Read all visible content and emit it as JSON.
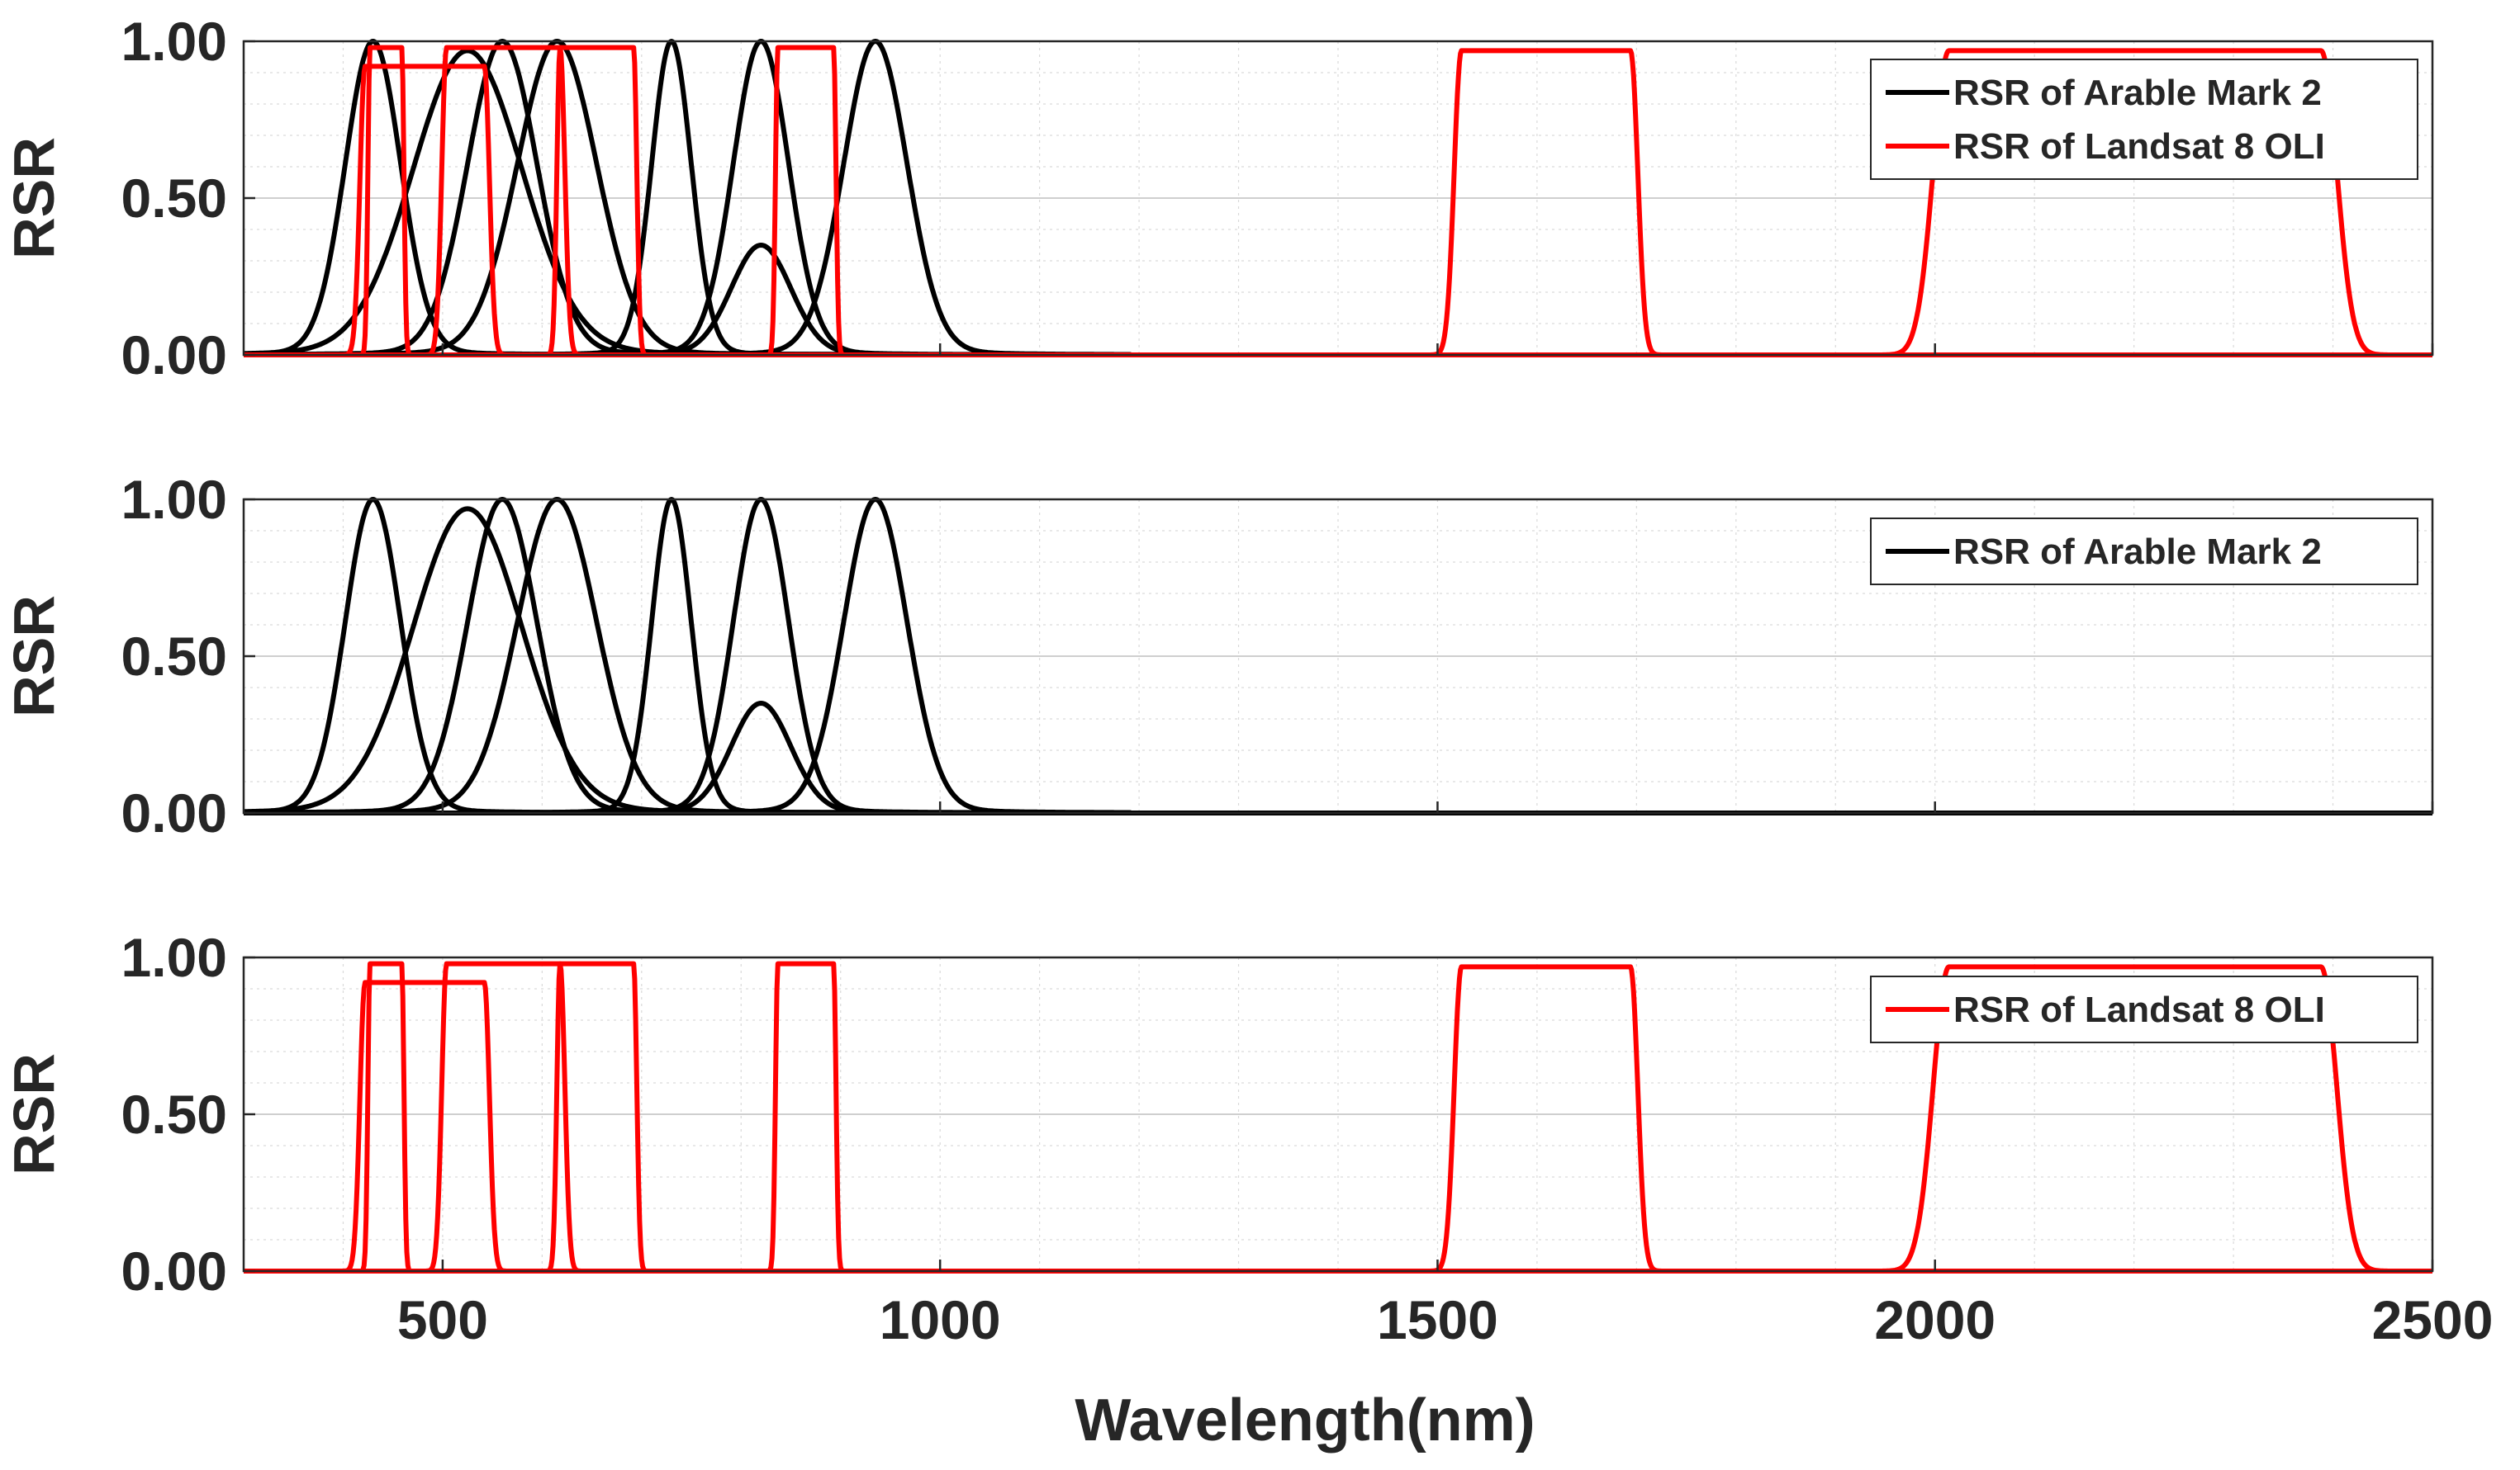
{
  "chart_data": [
    {
      "type": "line",
      "ylabel": "RSR",
      "xlabel": "",
      "xlim": [
        300,
        2500
      ],
      "ylim": [
        0,
        1
      ],
      "y_ticks": [
        "0.00",
        "0.50",
        "1.00"
      ],
      "x_ticks": [],
      "grid": "minor",
      "legend_position": "top-right",
      "legend": [
        "RSR of Arable Mark 2",
        "RSR of Landsat 8 OLI"
      ],
      "series": [
        {
          "name": "RSR of Arable Mark 2",
          "color": "#000000",
          "bands": [
            [
              430,
              28,
              1.0
            ],
            [
              525,
              55,
              0.97
            ],
            [
              560,
              35,
              1.0
            ],
            [
              615,
              40,
              1.0
            ],
            [
              730,
              20,
              1.0
            ],
            [
              820,
              28,
              1.0
            ],
            [
              935,
              32,
              1.0
            ],
            [
              820,
              30,
              0.35
            ]
          ]
        },
        {
          "name": "RSR of Landsat 8 OLI",
          "color": "#ff0000",
          "bands": [
            [
              443,
              16,
              0.98
            ],
            [
              482,
              60,
              0.92
            ],
            [
              561,
              57,
              0.98
            ],
            [
              655,
              37,
              0.98
            ],
            [
              865,
              28,
              0.98
            ],
            [
              1609,
              85,
              0.97
            ],
            [
              2201,
              187,
              0.97
            ]
          ]
        }
      ]
    },
    {
      "type": "line",
      "ylabel": "RSR",
      "xlabel": "",
      "xlim": [
        300,
        2500
      ],
      "ylim": [
        0,
        1
      ],
      "y_ticks": [
        "0.00",
        "0.50",
        "1.00"
      ],
      "x_ticks": [],
      "grid": "minor",
      "legend_position": "top-right",
      "legend": [
        "RSR of Arable Mark 2"
      ],
      "series": [
        {
          "name": "RSR of Arable Mark 2",
          "color": "#000000",
          "bands": [
            [
              430,
              28,
              1.0
            ],
            [
              525,
              55,
              0.97
            ],
            [
              560,
              35,
              1.0
            ],
            [
              615,
              40,
              1.0
            ],
            [
              730,
              20,
              1.0
            ],
            [
              820,
              28,
              1.0
            ],
            [
              935,
              32,
              1.0
            ],
            [
              820,
              30,
              0.35
            ]
          ]
        }
      ]
    },
    {
      "type": "line",
      "ylabel": "RSR",
      "xlabel": "Wavelength(nm)",
      "xlim": [
        300,
        2500
      ],
      "ylim": [
        0,
        1
      ],
      "y_ticks": [
        "0.00",
        "0.50",
        "1.00"
      ],
      "x_ticks": [
        "500",
        "1000",
        "1500",
        "2000",
        "2500"
      ],
      "grid": "minor",
      "legend_position": "top-right",
      "legend": [
        "RSR of Landsat 8 OLI"
      ],
      "series": [
        {
          "name": "RSR of Landsat 8 OLI",
          "color": "#ff0000",
          "bands": [
            [
              443,
              16,
              0.98
            ],
            [
              482,
              60,
              0.92
            ],
            [
              561,
              57,
              0.98
            ],
            [
              655,
              37,
              0.98
            ],
            [
              865,
              28,
              0.98
            ],
            [
              1609,
              85,
              0.97
            ],
            [
              2201,
              187,
              0.97
            ]
          ]
        }
      ]
    }
  ]
}
